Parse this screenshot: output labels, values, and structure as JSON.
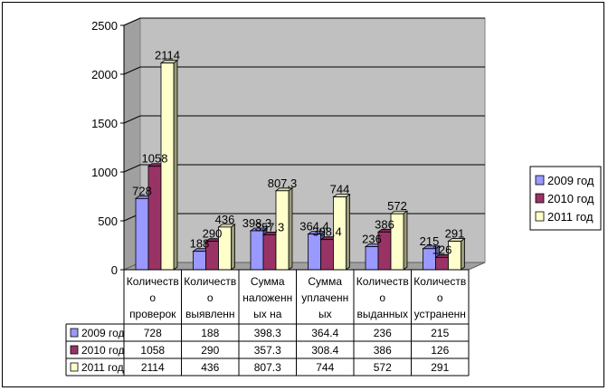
{
  "chart_data": {
    "type": "bar",
    "categories": [
      "Количество проверок",
      "Количество выявленн",
      "Сумма наложенных на",
      "Сумма уплаченных",
      "Количество выданных",
      "Количество устраненн"
    ],
    "category_label_lines": [
      [
        "Количеств",
        "о",
        "проверок"
      ],
      [
        "Количеств",
        "о",
        "выявленн"
      ],
      [
        "Сумма",
        "наложенн",
        "ых на"
      ],
      [
        "Сумма",
        "уплаченн",
        "ых"
      ],
      [
        "Количеств",
        "о",
        "выданных"
      ],
      [
        "Количеств",
        "о",
        "устраненн"
      ]
    ],
    "series": [
      {
        "name": "2009 год",
        "values": [
          728,
          188,
          398.3,
          364.4,
          236,
          215
        ],
        "labels": [
          "728",
          "188",
          "398,3",
          "364,4",
          "236",
          "215"
        ],
        "color": "#9999FF"
      },
      {
        "name": "2010 год",
        "values": [
          1058,
          290,
          357.3,
          308.4,
          386,
          126
        ],
        "labels": [
          "1058",
          "290",
          "357,3",
          "308,4",
          "386",
          "126"
        ],
        "color": "#993366"
      },
      {
        "name": "2011 год",
        "values": [
          2114,
          436,
          807.3,
          744,
          572,
          291
        ],
        "labels": [
          "2114",
          "436",
          "807,3",
          "744",
          "572",
          "291"
        ],
        "color": "#FFFFCC"
      }
    ],
    "table_values": [
      [
        "728",
        "188",
        "398.3",
        "364.4",
        "236",
        "215"
      ],
      [
        "1058",
        "290",
        "357.3",
        "308.4",
        "386",
        "126"
      ],
      [
        "2114",
        "436",
        "807.3",
        "744",
        "572",
        "291"
      ]
    ],
    "ylim": [
      0,
      2500
    ],
    "yticks": [
      0,
      500,
      1000,
      1500,
      2000,
      2500
    ],
    "grid": true,
    "wall_color": "#C0C0C0",
    "legend_position": "right",
    "data_table": true,
    "title": "",
    "xlabel": "",
    "ylabel": ""
  }
}
